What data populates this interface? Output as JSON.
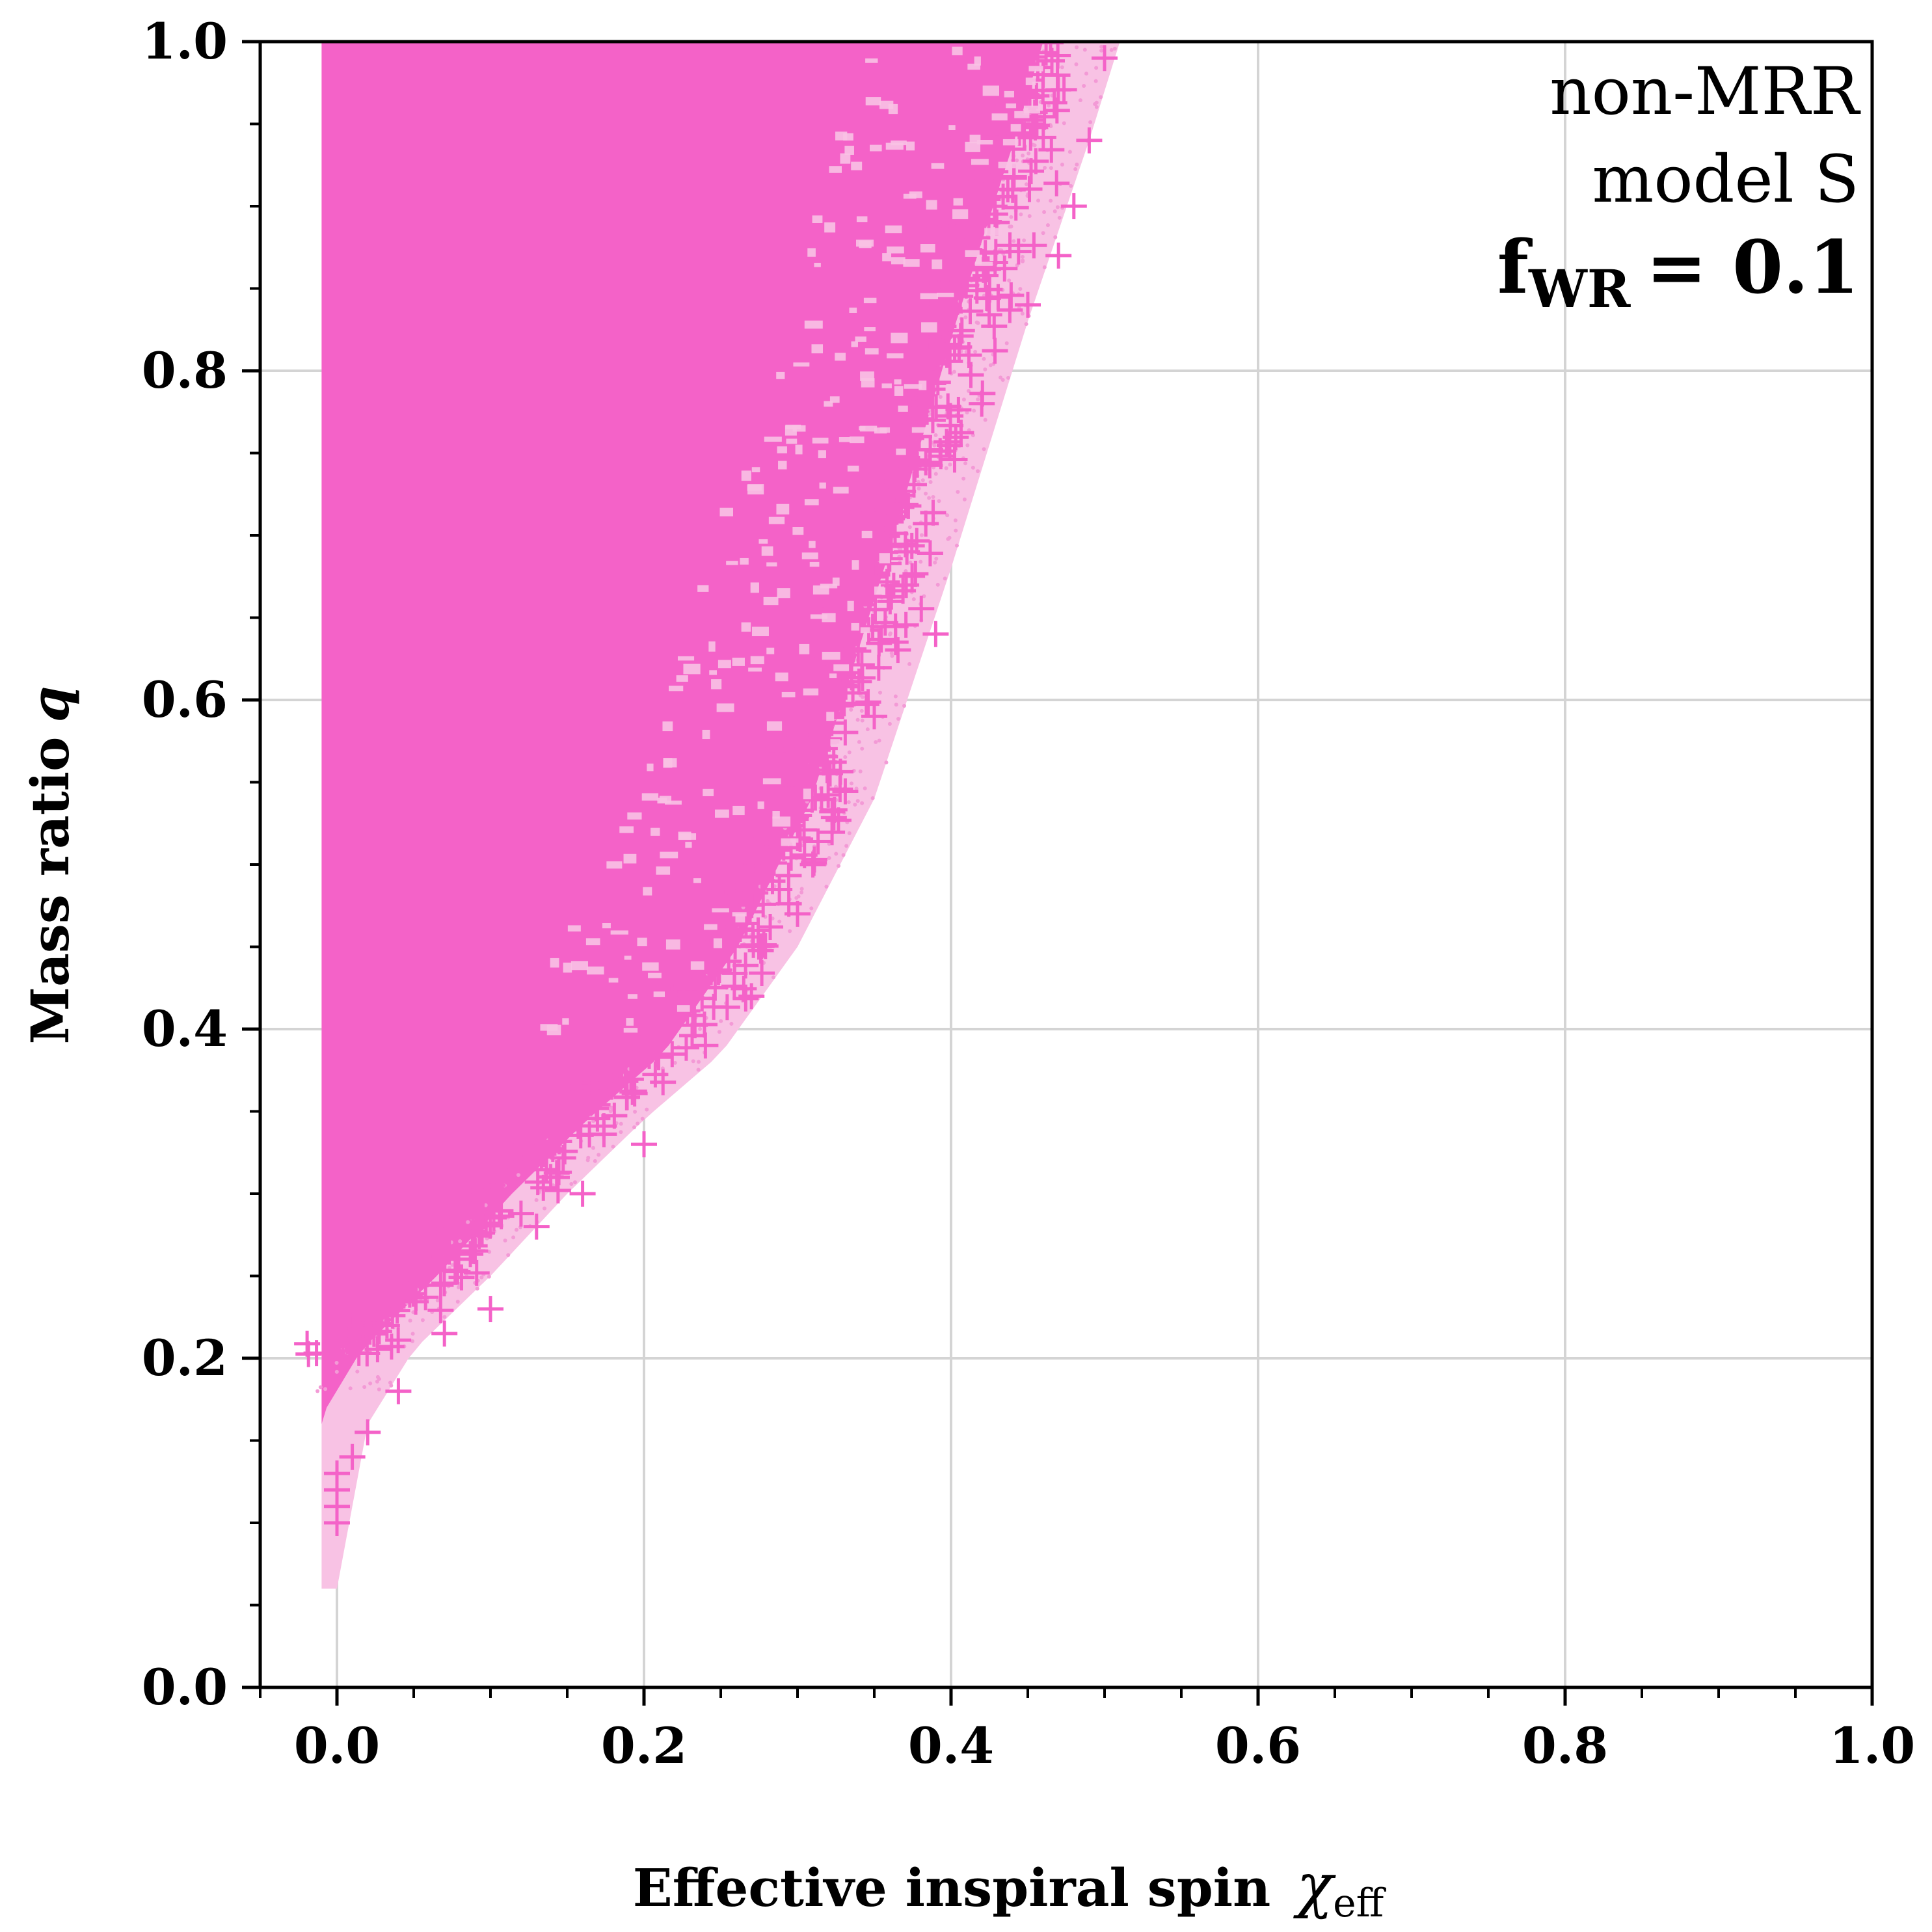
{
  "chart_data": {
    "type": "scatter",
    "title": "",
    "xlabel": "Effective inspiral spin",
    "xlabel_symbol": "χ",
    "xlabel_symbol_sub": "eff",
    "ylabel_text": "Mass ratio",
    "ylabel_symbol": "q",
    "xlim": [
      -0.05,
      1.0
    ],
    "ylim": [
      0.0,
      1.0
    ],
    "xticks": [
      "0.0",
      "0.2",
      "0.4",
      "0.6",
      "0.8",
      "1.0"
    ],
    "yticks": [
      "0.0",
      "0.2",
      "0.4",
      "0.6",
      "0.8",
      "1.0"
    ],
    "grid": true,
    "annotations": {
      "line1": "non-MRR",
      "line2": "model S",
      "f_main": "f",
      "f_sub": "WR",
      "f_value": "= 0.1"
    },
    "colors": {
      "light_points": "#f8c2e4",
      "plus_markers": "#f462c8",
      "grid": "#d4d4d4",
      "axes": "#000000"
    },
    "series": [
      {
        "marker": "dot",
        "color": "#f8c2e4",
        "x_min": -0.01,
        "upper_boundary": [
          [
            0.0,
            0.06
          ],
          [
            0.02,
            0.16
          ],
          [
            0.05,
            0.205
          ],
          [
            0.1,
            0.25
          ],
          [
            0.15,
            0.3
          ],
          [
            0.2,
            0.345
          ],
          [
            0.25,
            0.385
          ],
          [
            0.3,
            0.45
          ],
          [
            0.35,
            0.54
          ],
          [
            0.4,
            0.68
          ],
          [
            0.45,
            0.83
          ],
          [
            0.49,
            0.94
          ],
          [
            0.51,
            1.0
          ]
        ]
      },
      {
        "marker": "plus",
        "color": "#f462c8",
        "x_min": -0.01,
        "points": [
          [
            0.0,
            0.1
          ],
          [
            0.0,
            0.11
          ],
          [
            0.0,
            0.12
          ],
          [
            0.0,
            0.13
          ],
          [
            0.01,
            0.14
          ],
          [
            0.02,
            0.155
          ],
          [
            0.04,
            0.18
          ],
          [
            0.07,
            0.215
          ],
          [
            0.1,
            0.23
          ],
          [
            0.13,
            0.28
          ],
          [
            0.16,
            0.3
          ],
          [
            0.2,
            0.33
          ],
          [
            0.24,
            0.39
          ],
          [
            0.27,
            0.42
          ],
          [
            0.3,
            0.47
          ],
          [
            0.31,
            0.5
          ],
          [
            0.35,
            0.59
          ],
          [
            0.39,
            0.64
          ],
          [
            0.42,
            0.78
          ],
          [
            0.45,
            0.84
          ],
          [
            0.47,
            0.87
          ],
          [
            0.48,
            0.9
          ],
          [
            0.49,
            0.94
          ],
          [
            0.5,
            0.99
          ],
          [
            0.46,
            0.98
          ],
          [
            0.44,
            0.99
          ]
        ]
      }
    ]
  }
}
